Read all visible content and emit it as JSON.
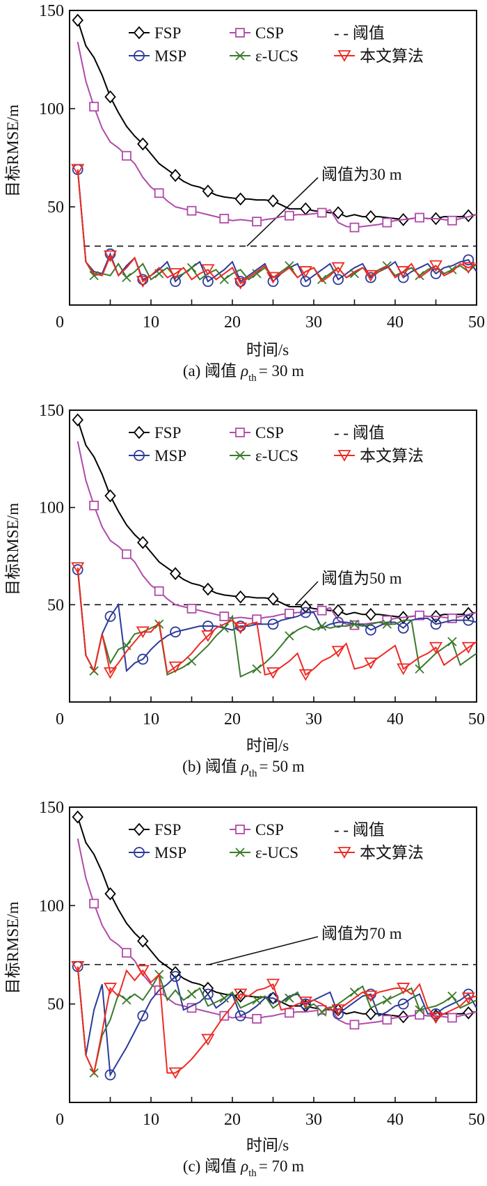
{
  "chart_data": [
    {
      "type": "line",
      "panel": "a",
      "caption_prefix": "(a) 阈值",
      "caption_symbol": "ρ",
      "caption_sub": "th",
      "caption_suffix": "= 30 m",
      "xlabel": "时间/s",
      "ylabel": "目标RMSE/m",
      "xlim": [
        0,
        50
      ],
      "ylim": [
        0,
        150
      ],
      "xticks": [
        "0",
        "10",
        "20",
        "30",
        "40",
        "50"
      ],
      "yticks": [
        "50",
        "100",
        "150"
      ],
      "threshold": 30,
      "annotation": "阈值为30 m",
      "legend": [
        "FSP",
        "CSP",
        "- - 阈值",
        "MSP",
        "ε-UCS",
        "本文算法"
      ],
      "series": [
        {
          "name": "FSP",
          "color": "#000000",
          "marker": "diamond",
          "values": [
            145,
            132,
            126,
            117,
            106,
            98,
            91,
            86,
            82,
            77,
            72,
            69,
            66,
            63,
            61,
            60,
            58,
            56,
            55,
            54.5,
            54,
            54,
            53.5,
            53.5,
            53,
            51,
            49,
            49,
            49,
            48,
            47.5,
            47,
            47,
            45,
            46,
            45,
            45,
            45,
            44.5,
            44,
            43.5,
            44,
            44.5,
            44,
            44,
            45,
            45,
            45,
            45.5,
            46
          ]
        },
        {
          "name": "CSP",
          "color": "#b04aa8",
          "marker": "square",
          "values": [
            134,
            114,
            101,
            90,
            83,
            80,
            76,
            72,
            65,
            60,
            57,
            53,
            50,
            49,
            48,
            47,
            46,
            45,
            44,
            43,
            43.5,
            43,
            42.5,
            43.5,
            44,
            45,
            45.5,
            46,
            46,
            46.5,
            47,
            48.5,
            42,
            40,
            39.5,
            40,
            40.5,
            41,
            42,
            43,
            43.5,
            44,
            44.5,
            44,
            44,
            43.5,
            43,
            44,
            45,
            46
          ]
        },
        {
          "name": "MSP",
          "color": "#2b3a99",
          "marker": "circle",
          "values": [
            69,
            22,
            17,
            16,
            26,
            15,
            20,
            24,
            13,
            15,
            18,
            22,
            12,
            16,
            19,
            22,
            12,
            15,
            18,
            22,
            12,
            15,
            18,
            21,
            12,
            16,
            19,
            21,
            12,
            15,
            18,
            21,
            13,
            16,
            19,
            21,
            14,
            17,
            19,
            22,
            14,
            17,
            19,
            21,
            16,
            19,
            20,
            22,
            23,
            17
          ]
        },
        {
          "name": "ε-UCS",
          "color": "#3a7a2a",
          "marker": "x",
          "values": [
            69,
            22,
            15,
            16,
            15,
            21,
            14,
            17,
            21,
            13,
            16,
            19,
            14,
            16,
            19,
            13,
            16,
            18,
            13,
            16,
            18,
            13,
            16,
            19,
            14,
            17,
            20,
            14,
            17,
            19,
            13,
            16,
            19,
            14,
            16,
            19,
            15,
            18,
            20,
            15,
            17,
            19,
            15,
            18,
            20,
            16,
            18,
            20,
            17,
            21
          ]
        },
        {
          "name": "本文算法",
          "color": "#ee2a24",
          "marker": "triangle-down",
          "values": [
            69,
            22,
            16,
            15,
            25,
            15,
            19,
            24,
            12,
            15,
            19,
            14,
            16,
            19,
            13,
            16,
            18,
            13,
            16,
            19,
            11,
            14,
            17,
            20,
            14,
            16,
            19,
            14,
            17,
            19,
            12,
            15,
            19,
            14,
            17,
            19,
            15,
            17,
            20,
            14,
            17,
            21,
            14,
            17,
            20,
            15,
            17,
            21,
            19,
            21
          ]
        }
      ]
    },
    {
      "type": "line",
      "panel": "b",
      "caption_prefix": "(b) 阈值",
      "caption_symbol": "ρ",
      "caption_sub": "th",
      "caption_suffix": "= 50 m",
      "xlabel": "时间/s",
      "ylabel": "目标RMSE/m",
      "xlim": [
        0,
        50
      ],
      "ylim": [
        0,
        150
      ],
      "xticks": [
        "0",
        "10",
        "20",
        "30",
        "40",
        "50"
      ],
      "yticks": [
        "50",
        "100",
        "150"
      ],
      "threshold": 50,
      "annotation": "阈值为50 m",
      "legend": [
        "FSP",
        "CSP",
        "- - 阈值",
        "MSP",
        "ε-UCS",
        "本文算法"
      ],
      "series": [
        {
          "name": "FSP",
          "color": "#000000",
          "marker": "diamond",
          "values": [
            145,
            132,
            126,
            117,
            106,
            98,
            91,
            86,
            82,
            77,
            72,
            69,
            66,
            63,
            61,
            60,
            58,
            56,
            55,
            54.5,
            54,
            54,
            53.5,
            53.5,
            53,
            51,
            49,
            49,
            49,
            48,
            47.5,
            47,
            47,
            45,
            46,
            45,
            45,
            45,
            44.5,
            44,
            43.5,
            44,
            44.5,
            44,
            44,
            45,
            45,
            45,
            45.5,
            46
          ]
        },
        {
          "name": "CSP",
          "color": "#b04aa8",
          "marker": "square",
          "values": [
            134,
            114,
            101,
            90,
            83,
            80,
            76,
            72,
            65,
            60,
            57,
            53,
            50,
            49,
            48,
            47,
            46,
            45,
            44,
            43,
            43.5,
            43,
            42.5,
            43.5,
            44,
            45,
            45.5,
            46,
            46,
            46.5,
            47,
            48.5,
            42,
            40,
            39.5,
            40,
            40.5,
            41,
            42,
            43,
            43.5,
            44,
            44.5,
            44,
            44,
            43.5,
            43,
            44,
            45,
            46
          ]
        },
        {
          "name": "MSP",
          "color": "#2b3a99",
          "marker": "circle",
          "values": [
            68,
            24,
            16,
            35,
            44,
            50,
            16,
            20,
            22,
            27,
            31,
            34,
            36,
            37,
            38,
            39,
            39,
            39,
            38,
            37,
            39,
            39,
            40,
            40,
            40,
            42,
            43,
            44,
            46,
            46,
            38,
            40,
            41,
            41,
            40,
            40,
            37,
            39,
            41,
            41,
            38,
            42,
            43,
            43,
            40,
            41,
            42,
            42,
            42,
            41
          ]
        },
        {
          "name": "ε-UCS",
          "color": "#3a7a2a",
          "marker": "x",
          "values": [
            69,
            24,
            16,
            35,
            20,
            27,
            29,
            35,
            36,
            38,
            40,
            14,
            16,
            18,
            21,
            25,
            29,
            34,
            38,
            44,
            13,
            15,
            17,
            20,
            24,
            29,
            34,
            37,
            39,
            37,
            39,
            38,
            39,
            39,
            40,
            39,
            40,
            41,
            40,
            40,
            42,
            42,
            17,
            21,
            25,
            28,
            31,
            19,
            22,
            25
          ]
        },
        {
          "name": "本文算法",
          "color": "#ee2a24",
          "marker": "triangle-down",
          "values": [
            69,
            24,
            16,
            35,
            15,
            20,
            26,
            31,
            36,
            36,
            41,
            15,
            18,
            21,
            25,
            30,
            34,
            38,
            40,
            42,
            38,
            40,
            41,
            14,
            15,
            18,
            21,
            25,
            14,
            17,
            21,
            23,
            26,
            30,
            17,
            18,
            20,
            23,
            26,
            29,
            17,
            20,
            23,
            25,
            28,
            19,
            22,
            25,
            28,
            31
          ]
        }
      ]
    },
    {
      "type": "line",
      "panel": "c",
      "caption_prefix": "(c) 阈值",
      "caption_symbol": "ρ",
      "caption_sub": "th",
      "caption_suffix": "= 70 m",
      "xlabel": "时间/s",
      "ylabel": "目标RMSE/m",
      "xlim": [
        0,
        50
      ],
      "ylim": [
        0,
        150
      ],
      "xticks": [
        "0",
        "10",
        "20",
        "30",
        "40",
        "50"
      ],
      "yticks": [
        "50",
        "100",
        "150"
      ],
      "threshold": 70,
      "annotation": "阈值为70 m",
      "legend": [
        "FSP",
        "CSP",
        "- - 阈值",
        "MSP",
        "ε-UCS",
        "本文算法"
      ],
      "series": [
        {
          "name": "FSP",
          "color": "#000000",
          "marker": "diamond",
          "values": [
            145,
            132,
            126,
            117,
            106,
            98,
            91,
            86,
            82,
            77,
            72,
            69,
            66,
            63,
            61,
            60,
            58,
            56,
            55,
            54.5,
            54,
            54,
            53.5,
            53.5,
            53,
            51,
            49,
            49,
            49,
            48,
            47.5,
            47,
            47,
            45,
            46,
            45,
            45,
            45,
            44.5,
            44,
            43.5,
            44,
            44.5,
            44,
            44,
            45,
            45,
            45,
            45.5,
            46
          ]
        },
        {
          "name": "CSP",
          "color": "#b04aa8",
          "marker": "square",
          "values": [
            134,
            114,
            101,
            90,
            83,
            80,
            76,
            72,
            65,
            60,
            57,
            53,
            50,
            49,
            48,
            47,
            46,
            45,
            44,
            43,
            43.5,
            43,
            42.5,
            43.5,
            44,
            45,
            45.5,
            46,
            46,
            46.5,
            47,
            48.5,
            42,
            40,
            39.5,
            40,
            40.5,
            41,
            42,
            43,
            43.5,
            44,
            44.5,
            44,
            44,
            43.5,
            43,
            44,
            45,
            46
          ]
        },
        {
          "name": "MSP",
          "color": "#2b3a99",
          "marker": "circle",
          "values": [
            69,
            24,
            47,
            60,
            14,
            21,
            28,
            36,
            44,
            52,
            57,
            60,
            64,
            47,
            49,
            51,
            55,
            48,
            51,
            55,
            44,
            46,
            49,
            53,
            53,
            51,
            54,
            55,
            50,
            52,
            54,
            56,
            45,
            48,
            51,
            54,
            55,
            44,
            46,
            49,
            50,
            53,
            55,
            45,
            45,
            48,
            50,
            52,
            55,
            48
          ]
        },
        {
          "name": "ε-UCS",
          "color": "#3a7a2a",
          "marker": "x",
          "values": [
            69,
            24,
            15,
            34,
            42,
            55,
            52,
            55,
            52,
            58,
            65,
            52,
            57,
            52,
            55,
            58,
            49,
            51,
            53,
            56,
            48,
            50,
            52,
            54,
            48,
            51,
            53,
            56,
            48,
            50,
            46,
            48,
            50,
            53,
            56,
            59,
            48,
            50,
            52,
            54,
            56,
            58,
            47,
            48,
            49,
            51,
            54,
            48,
            50,
            52
          ]
        },
        {
          "name": "本文算法",
          "color": "#ee2a24",
          "marker": "triangle-down",
          "values": [
            69,
            24,
            15,
            36,
            58,
            54,
            67,
            62,
            67,
            61,
            65,
            15,
            15,
            18,
            22,
            27,
            32,
            38,
            44,
            49,
            55,
            54,
            57,
            58,
            60,
            47,
            48,
            50,
            51,
            52,
            50,
            47,
            47,
            50,
            53,
            56,
            54,
            56,
            57,
            58,
            58,
            55,
            60,
            48,
            43,
            45,
            47,
            49,
            53,
            54
          ]
        }
      ]
    }
  ]
}
